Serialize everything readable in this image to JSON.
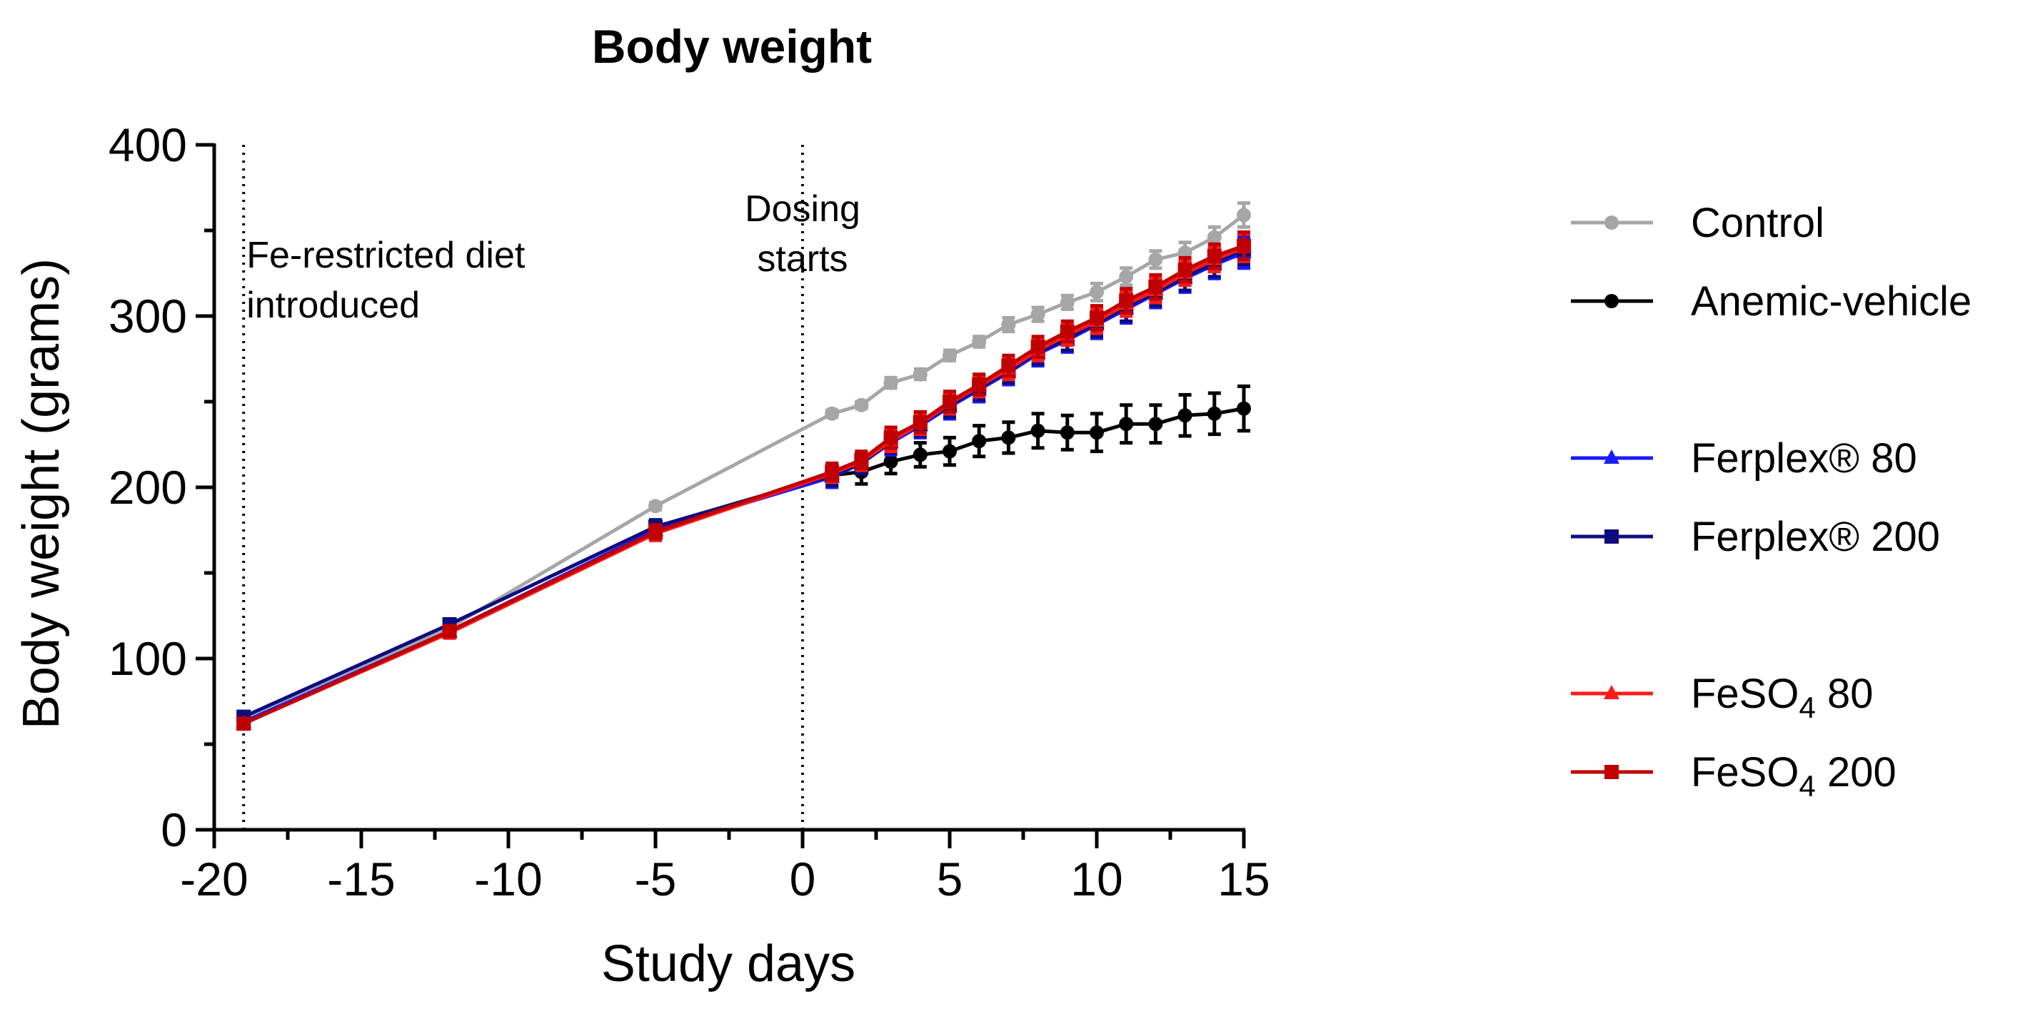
{
  "chart_data": {
    "type": "line",
    "title": "Body weight",
    "xlabel": "Study days",
    "ylabel": "Body weight (grams)",
    "xlim": [
      -20,
      15
    ],
    "ylim": [
      0,
      400
    ],
    "xticks": [
      "-20",
      "-15",
      "-10",
      "-5",
      "0",
      "5",
      "10",
      "15"
    ],
    "yticks": [
      "0",
      "100",
      "200",
      "300",
      "400"
    ],
    "grid": false,
    "legend_position": "right",
    "annotations": [
      {
        "x": -19,
        "lines": [
          "Fe-restricted diet",
          "introduced"
        ]
      },
      {
        "x": 0,
        "lines": [
          "Dosing",
          "starts"
        ]
      }
    ],
    "series": [
      {
        "name": "Control",
        "color": "#a6a6a8",
        "marker": "circle",
        "x": [
          -19,
          -12,
          -5,
          1,
          2,
          3,
          4,
          5,
          6,
          7,
          8,
          9,
          10,
          11,
          12,
          13,
          14,
          15
        ],
        "y": [
          64,
          118,
          189,
          243,
          248,
          261,
          266,
          277,
          285,
          295,
          301,
          308,
          314,
          323,
          333,
          337,
          346,
          359
        ],
        "err": [
          2,
          2,
          2,
          2,
          2,
          3,
          3,
          3,
          3,
          4,
          4,
          4,
          5,
          5,
          5,
          6,
          6,
          7
        ]
      },
      {
        "name": "Anemic-vehicle",
        "color": "#000000",
        "marker": "circle",
        "x": [
          1,
          2,
          3,
          4,
          5,
          6,
          7,
          8,
          9,
          10,
          11,
          12,
          13,
          14,
          15
        ],
        "y": [
          207,
          209,
          215,
          219,
          221,
          227,
          229,
          233,
          232,
          232,
          237,
          237,
          242,
          243,
          246
        ],
        "err": [
          6,
          7,
          7,
          7,
          8,
          9,
          9,
          10,
          10,
          11,
          11,
          11,
          12,
          12,
          13
        ]
      },
      {
        "name": "Ferplex® 80",
        "color": "#1a1aff",
        "marker": "triangle",
        "x": [
          -19,
          -12,
          -5,
          1,
          2,
          3,
          4,
          5,
          6,
          7,
          8,
          9,
          10,
          11,
          12,
          13,
          14,
          15
        ],
        "y": [
          63,
          116,
          175,
          206,
          214,
          226,
          236,
          247,
          257,
          267,
          278,
          286,
          295,
          304,
          313,
          322,
          330,
          337
        ],
        "err": [
          3,
          3,
          4,
          6,
          6,
          7,
          7,
          7,
          7,
          7,
          7,
          7,
          8,
          8,
          8,
          8,
          8,
          9
        ]
      },
      {
        "name": "Ferplex® 200",
        "color": "#0d0d80",
        "marker": "square",
        "x": [
          -19,
          -12,
          -5,
          1,
          2,
          3,
          4,
          5,
          6,
          7,
          8,
          9,
          10,
          11,
          12,
          13,
          14,
          15
        ],
        "y": [
          66,
          120,
          177,
          207,
          214,
          227,
          237,
          248,
          258,
          268,
          279,
          287,
          296,
          305,
          314,
          323,
          331,
          339
        ],
        "err": [
          3,
          3,
          4,
          6,
          6,
          7,
          7,
          7,
          7,
          7,
          7,
          7,
          8,
          8,
          8,
          8,
          8,
          9
        ]
      },
      {
        "name": "FeSO4 80",
        "name_base": "FeSO",
        "name_sub": "4",
        "name_rest": " 80",
        "color": "#ff1a1a",
        "marker": "triangle",
        "x": [
          -19,
          -12,
          -5,
          1,
          2,
          3,
          4,
          5,
          6,
          7,
          8,
          9,
          10,
          11,
          12,
          13,
          14,
          15
        ],
        "y": [
          62,
          115,
          173,
          208,
          215,
          227,
          237,
          249,
          259,
          269,
          280,
          289,
          297,
          307,
          315,
          325,
          333,
          340
        ],
        "err": [
          3,
          3,
          4,
          5,
          5,
          6,
          6,
          6,
          6,
          6,
          6,
          6,
          7,
          7,
          7,
          7,
          7,
          8
        ]
      },
      {
        "name": "FeSO4 200",
        "name_base": "FeSO",
        "name_sub": "4",
        "name_rest": " 200",
        "color": "#c00000",
        "marker": "square",
        "x": [
          -19,
          -12,
          -5,
          1,
          2,
          3,
          4,
          5,
          6,
          7,
          8,
          9,
          10,
          11,
          12,
          13,
          14,
          15
        ],
        "y": [
          62,
          116,
          174,
          209,
          216,
          229,
          238,
          250,
          260,
          271,
          282,
          291,
          299,
          309,
          317,
          327,
          335,
          341
        ],
        "err": [
          3,
          3,
          4,
          5,
          5,
          6,
          6,
          6,
          6,
          6,
          6,
          6,
          7,
          7,
          7,
          7,
          7,
          8
        ]
      }
    ]
  }
}
